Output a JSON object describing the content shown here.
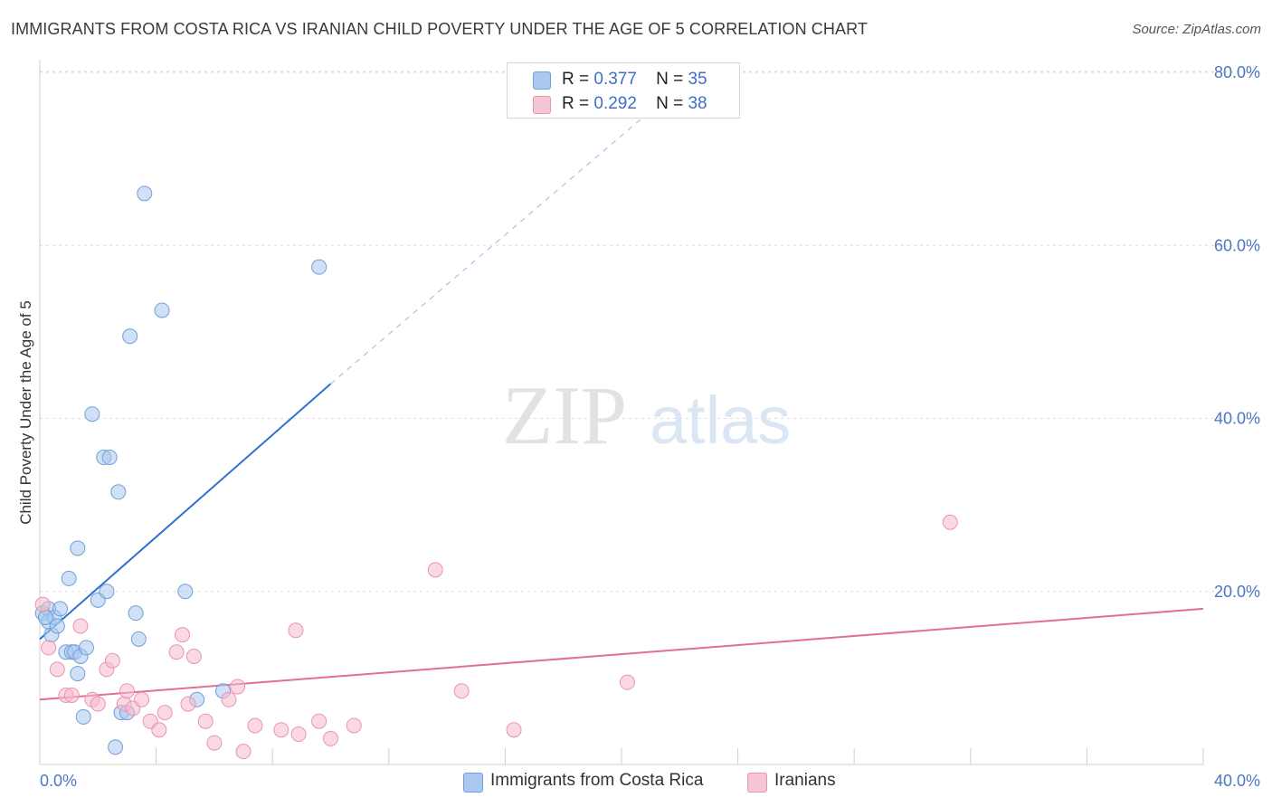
{
  "title": "IMMIGRANTS FROM COSTA RICA VS IRANIAN CHILD POVERTY UNDER THE AGE OF 5 CORRELATION CHART",
  "source": "Source: ZipAtlas.com",
  "watermark": {
    "zip": "ZIP",
    "atlas": "atlas"
  },
  "colors": {
    "blue_fill": "#aac8f0",
    "blue_stroke": "#6f9fd8",
    "blue_line": "#2f72d0",
    "pink_fill": "#f7b9cc",
    "pink_stroke": "#e895b0",
    "pink_line": "#e07098",
    "tick_text": "#4a78c2",
    "grid": "#dcdcdc"
  },
  "legend_top": {
    "rows": [
      {
        "r_label": "R =",
        "r_value": "0.377",
        "n_label": "N =",
        "n_value": "35",
        "color": "blue"
      },
      {
        "r_label": "R =",
        "r_value": "0.292",
        "n_label": "N =",
        "n_value": "38",
        "color": "pink"
      }
    ]
  },
  "legend_bottom": [
    {
      "label": "Immigrants from Costa Rica",
      "color": "blue"
    },
    {
      "label": "Iranians",
      "color": "pink"
    }
  ],
  "chart_data": {
    "type": "scatter",
    "title": "IMMIGRANTS FROM COSTA RICA VS IRANIAN CHILD POVERTY UNDER THE AGE OF 5 CORRELATION CHART",
    "xlabel": "",
    "ylabel": "Child Poverty Under the Age of 5",
    "xlim": [
      0,
      40
    ],
    "ylim": [
      0,
      80
    ],
    "x_tick_labels": [
      "0.0%",
      "40.0%"
    ],
    "y_ticks": [
      20,
      40,
      60,
      80
    ],
    "y_tick_labels": [
      "20.0%",
      "40.0%",
      "60.0%",
      "80.0%"
    ],
    "grid": true,
    "legend_position": "top-center",
    "series": [
      {
        "name": "Immigrants from Costa Rica",
        "color": "blue",
        "r": 0.377,
        "n": 35,
        "trend": {
          "x": [
            0,
            10
          ],
          "y": [
            14.5,
            44
          ],
          "extended_to": [
            21.5,
            77
          ]
        },
        "points": [
          [
            0.1,
            17.5
          ],
          [
            0.3,
            18.0
          ],
          [
            0.3,
            16.5
          ],
          [
            0.4,
            15.0
          ],
          [
            0.5,
            17.0
          ],
          [
            0.6,
            16.0
          ],
          [
            0.7,
            18.0
          ],
          [
            0.9,
            13.0
          ],
          [
            1.0,
            21.5
          ],
          [
            1.1,
            13.0
          ],
          [
            1.2,
            13.0
          ],
          [
            1.3,
            10.5
          ],
          [
            1.3,
            25.0
          ],
          [
            1.4,
            12.5
          ],
          [
            1.5,
            5.5
          ],
          [
            1.6,
            13.5
          ],
          [
            1.8,
            40.5
          ],
          [
            2.0,
            19.0
          ],
          [
            2.2,
            35.5
          ],
          [
            2.3,
            20.0
          ],
          [
            2.4,
            35.5
          ],
          [
            2.6,
            2.0
          ],
          [
            2.7,
            31.5
          ],
          [
            2.8,
            6.0
          ],
          [
            3.0,
            6.0
          ],
          [
            3.1,
            49.5
          ],
          [
            3.3,
            17.5
          ],
          [
            3.4,
            14.5
          ],
          [
            3.6,
            66.0
          ],
          [
            4.2,
            52.5
          ],
          [
            5.0,
            20.0
          ],
          [
            5.4,
            7.5
          ],
          [
            6.3,
            8.5
          ],
          [
            9.6,
            57.5
          ],
          [
            0.2,
            17.0
          ]
        ]
      },
      {
        "name": "Iranians",
        "color": "pink",
        "r": 0.292,
        "n": 38,
        "trend": {
          "x": [
            0,
            40
          ],
          "y": [
            7.5,
            18.0
          ]
        },
        "points": [
          [
            0.1,
            18.5
          ],
          [
            0.3,
            13.5
          ],
          [
            0.6,
            11.0
          ],
          [
            0.9,
            8.0
          ],
          [
            1.1,
            8.0
          ],
          [
            1.4,
            16.0
          ],
          [
            1.8,
            7.5
          ],
          [
            2.0,
            7.0
          ],
          [
            2.3,
            11.0
          ],
          [
            2.5,
            12.0
          ],
          [
            2.9,
            7.0
          ],
          [
            3.0,
            8.5
          ],
          [
            3.2,
            6.5
          ],
          [
            3.5,
            7.5
          ],
          [
            3.8,
            5.0
          ],
          [
            4.1,
            4.0
          ],
          [
            4.3,
            6.0
          ],
          [
            4.7,
            13.0
          ],
          [
            4.9,
            15.0
          ],
          [
            5.1,
            7.0
          ],
          [
            5.3,
            12.5
          ],
          [
            5.7,
            5.0
          ],
          [
            6.0,
            2.5
          ],
          [
            6.5,
            7.5
          ],
          [
            6.8,
            9.0
          ],
          [
            7.0,
            1.5
          ],
          [
            7.4,
            4.5
          ],
          [
            8.3,
            4.0
          ],
          [
            8.8,
            15.5
          ],
          [
            8.9,
            3.5
          ],
          [
            9.6,
            5.0
          ],
          [
            10.0,
            3.0
          ],
          [
            10.8,
            4.5
          ],
          [
            13.6,
            22.5
          ],
          [
            14.5,
            8.5
          ],
          [
            16.3,
            4.0
          ],
          [
            20.2,
            9.5
          ],
          [
            31.3,
            28.0
          ]
        ]
      }
    ]
  }
}
